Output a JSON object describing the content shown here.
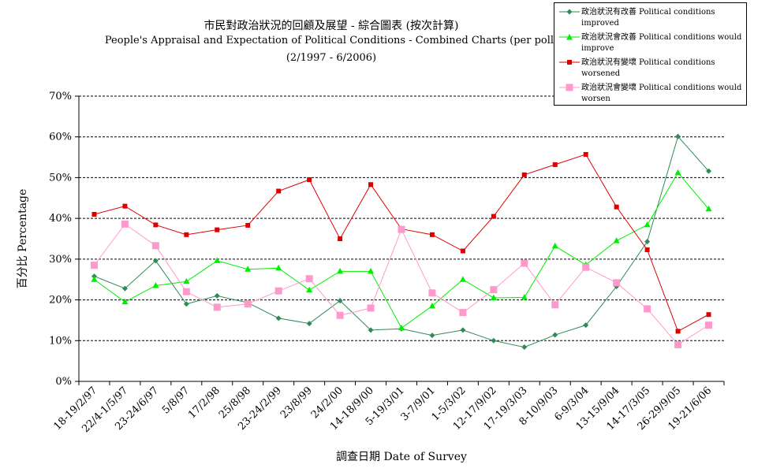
{
  "chart_data": {
    "type": "line",
    "title": "市民對政治狀況的回顧及展望 - 綜合圖表 (按次計算)",
    "subtitle": "People's Appraisal and Expectation of Political Conditions - Combined Charts  (per poll)",
    "period": "(2/1997 - 6/2006)",
    "xlabel": "調查日期 Date of Survey",
    "ylabel": "百分比 Percentage",
    "ylim": [
      0,
      70
    ],
    "yticks": [
      "0%",
      "10%",
      "20%",
      "30%",
      "40%",
      "50%",
      "60%",
      "70%"
    ],
    "grid": "horizontal dashed",
    "legend_position": "top-right",
    "categories": [
      "18-19/2/97",
      "22/4-1/5/97",
      "23-24/6/97",
      "5/8/97",
      "17/2/98",
      "25/8/98",
      "23-24/2/99",
      "23/8/99",
      "24/2/00",
      "14-18/9/00",
      "5-19/3/01",
      "3-7/9/01",
      "1-5/3/02",
      "12-17/9/02",
      "17-19/3/03",
      "8-10/9/03",
      "6-9/3/04",
      "13-15/9/04",
      "14-17/3/05",
      "26-29/9/05",
      "19-21/6/06"
    ],
    "series": [
      {
        "name": "政治狀況有改善 Political conditions improved",
        "color": "#2e8b57",
        "marker": "diamond",
        "values": [
          25.8,
          22.8,
          29.6,
          19.0,
          21.0,
          19.3,
          15.5,
          14.2,
          19.8,
          12.6,
          12.9,
          11.3,
          12.6,
          10.0,
          8.4,
          11.4,
          13.8,
          23.3,
          34.3,
          60.1,
          51.6
        ]
      },
      {
        "name": "政治狀況會改善 Political conditions would improve",
        "color": "#00ee00",
        "marker": "triangle",
        "values": [
          25.0,
          19.5,
          23.5,
          24.5,
          29.6,
          27.5,
          27.8,
          22.4,
          27.0,
          27.0,
          13.1,
          18.5,
          25.0,
          20.5,
          20.6,
          33.2,
          28.6,
          34.5,
          38.4,
          51.2,
          42.3
        ]
      },
      {
        "name": "政治狀況有變壞 Political conditions worsened",
        "color": "#dd0000",
        "marker": "square",
        "values": [
          41.0,
          43.0,
          38.4,
          36.0,
          37.2,
          38.3,
          46.7,
          49.5,
          35.0,
          48.3,
          37.4,
          36.0,
          32.0,
          40.5,
          50.7,
          53.2,
          55.7,
          42.8,
          32.3,
          12.3,
          16.4
        ]
      },
      {
        "name": "政治狀況會變壞 Political conditions would worsen",
        "color": "#ff99cc",
        "marker": "square-large",
        "values": [
          28.5,
          38.6,
          33.3,
          22.0,
          18.2,
          19.0,
          22.2,
          25.2,
          16.2,
          18.0,
          37.3,
          21.7,
          16.9,
          22.5,
          29.0,
          18.8,
          28.0,
          24.2,
          17.8,
          9.0,
          13.8
        ]
      }
    ]
  },
  "legend": {
    "items": [
      {
        "line1": "政治狀況有改善 Political conditions",
        "line2": "improved"
      },
      {
        "line1": "政治狀況會改善 Political conditions would",
        "line2": "improve"
      },
      {
        "line1": "政治狀況有變壞 Political conditions",
        "line2": "worsened"
      },
      {
        "line1": "政治狀況會變壞 Political conditions would",
        "line2": "worsen"
      }
    ]
  }
}
